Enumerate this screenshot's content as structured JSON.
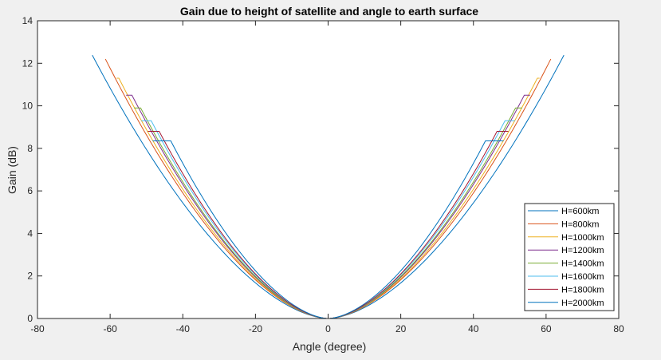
{
  "chart_data": {
    "type": "line",
    "title": "Gain due to height of satellite and angle to earth surface",
    "xlabel": "Angle (degree)",
    "ylabel": "Gain (dB)",
    "xlim": [
      -80,
      80
    ],
    "ylim": [
      0,
      14
    ],
    "xticks": [
      -80,
      -60,
      -40,
      -20,
      0,
      20,
      40,
      60,
      80
    ],
    "yticks": [
      0,
      2,
      4,
      6,
      8,
      10,
      12,
      14
    ],
    "grid": false,
    "legend_position": "bottom-right",
    "series": [
      {
        "name": "H=600km",
        "color": "#0072BD",
        "max_angle": 64.9,
        "max_gain": 12.38,
        "plateau_start": 64.9
      },
      {
        "name": "H=800km",
        "color": "#D95319",
        "max_angle": 61.3,
        "max_gain": 12.2,
        "plateau_start": 61.3
      },
      {
        "name": "H=1000km",
        "color": "#EDB120",
        "max_angle": 58.2,
        "max_gain": 11.3,
        "plateau_start": 57.6
      },
      {
        "name": "H=1200km",
        "color": "#7E2F8E",
        "max_angle": 55.6,
        "max_gain": 10.5,
        "plateau_start": 54.0
      },
      {
        "name": "H=1400km",
        "color": "#77AC30",
        "max_angle": 53.4,
        "max_gain": 9.9,
        "plateau_start": 51.6
      },
      {
        "name": "H=1600km",
        "color": "#4DBEEE",
        "max_angle": 51.4,
        "max_gain": 9.3,
        "plateau_start": 48.7
      },
      {
        "name": "H=1800km",
        "color": "#A2142F",
        "max_angle": 49.6,
        "max_gain": 8.8,
        "plateau_start": 46.5
      },
      {
        "name": "H=2000km",
        "color": "#0072BD",
        "max_angle": 48.3,
        "max_gain": 8.35,
        "plateau_start": 43.3
      }
    ]
  }
}
